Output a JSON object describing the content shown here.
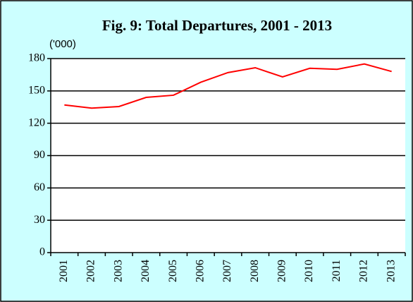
{
  "chart_data": {
    "type": "line",
    "title": "Fig. 9: Total Departures, 2001 - 2013",
    "y_label": "('000)",
    "categories": [
      "2001",
      "2002",
      "2003",
      "2004",
      "2005",
      "2006",
      "2007",
      "2008",
      "2009",
      "2010",
      "2011",
      "2012",
      "2013"
    ],
    "series": [
      {
        "name": "Total Departures",
        "color": "#ff0000",
        "values": [
          137,
          134,
          135.5,
          144,
          146,
          158,
          167,
          171.5,
          163,
          171,
          170,
          175,
          168
        ]
      }
    ],
    "ylim": [
      0,
      180
    ],
    "yticks": [
      0,
      30,
      60,
      90,
      120,
      150,
      180
    ],
    "grid": true
  }
}
